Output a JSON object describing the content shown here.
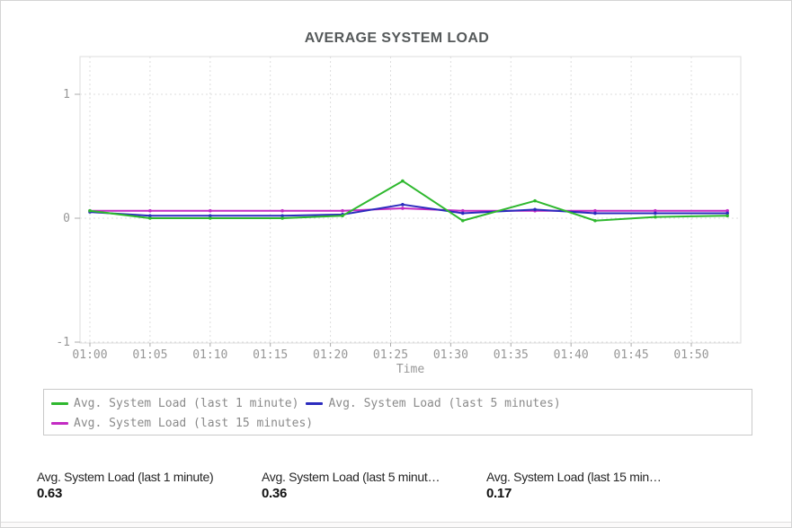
{
  "header": {
    "title": "AVERAGE SYSTEM LOAD"
  },
  "chart_data": {
    "type": "line",
    "title": "AVERAGE SYSTEM LOAD",
    "xlabel": "Time",
    "ylabel": "",
    "grid": true,
    "legend_position": "bottom",
    "ylim": [
      -1,
      1.3
    ],
    "x_tick_labels": [
      "01:00",
      "01:05",
      "01:10",
      "01:15",
      "01:20",
      "01:25",
      "01:30",
      "01:35",
      "01:40",
      "01:45",
      "01:50"
    ],
    "x_tick_minutes": [
      0,
      5,
      10,
      15,
      20,
      25,
      30,
      35,
      40,
      45,
      50
    ],
    "y_ticks": [
      {
        "label": "1",
        "value": 1
      },
      {
        "label": "0",
        "value": 0
      },
      {
        "label": "-1",
        "value": -1
      }
    ],
    "x_minutes": [
      0,
      5,
      10,
      16,
      21,
      26,
      31,
      37,
      42,
      47,
      53
    ],
    "x_times": [
      "01:00",
      "01:05",
      "01:10",
      "01:16",
      "01:21",
      "01:26",
      "01:31",
      "01:37",
      "01:42",
      "01:47",
      "01:53"
    ],
    "series": [
      {
        "name": "Avg. System Load (last 1 minute)",
        "color": "#2eb82e",
        "values": [
          0.06,
          0.0,
          0.0,
          0.0,
          0.02,
          0.3,
          -0.02,
          0.14,
          -0.02,
          0.01,
          0.02
        ]
      },
      {
        "name": "Avg. System Load (last 5 minutes)",
        "color": "#2b2bbe",
        "values": [
          0.05,
          0.02,
          0.02,
          0.02,
          0.03,
          0.11,
          0.04,
          0.07,
          0.04,
          0.04,
          0.04
        ]
      },
      {
        "name": "Avg. System Load (last 15 minutes)",
        "color": "#c32bc3",
        "values": [
          0.06,
          0.06,
          0.06,
          0.06,
          0.06,
          0.08,
          0.06,
          0.06,
          0.06,
          0.06,
          0.06
        ]
      }
    ]
  },
  "legend": {
    "items": [
      {
        "label": "Avg. System Load (last 1 minute)",
        "color": "#2eb82e"
      },
      {
        "label": "Avg. System Load (last 5 minutes)",
        "color": "#2b2bbe"
      },
      {
        "label": "Avg. System Load (last 15 minutes)",
        "color": "#c32bc3"
      }
    ]
  },
  "stats": [
    {
      "label": "Avg. System Load (last 1 minute)",
      "value": "0.63"
    },
    {
      "label": "Avg. System Load (last 5 minut…",
      "value": "0.36"
    },
    {
      "label": "Avg. System Load (last 15 min…",
      "value": "0.17"
    }
  ],
  "colors": {
    "green": "#2eb82e",
    "blue": "#2b2bbe",
    "magenta": "#c32bc3",
    "grid": "#dddddd",
    "tick": "#ababab",
    "axis_text": "#979797",
    "title_text": "#55595a",
    "border": "#d4d4d4"
  }
}
